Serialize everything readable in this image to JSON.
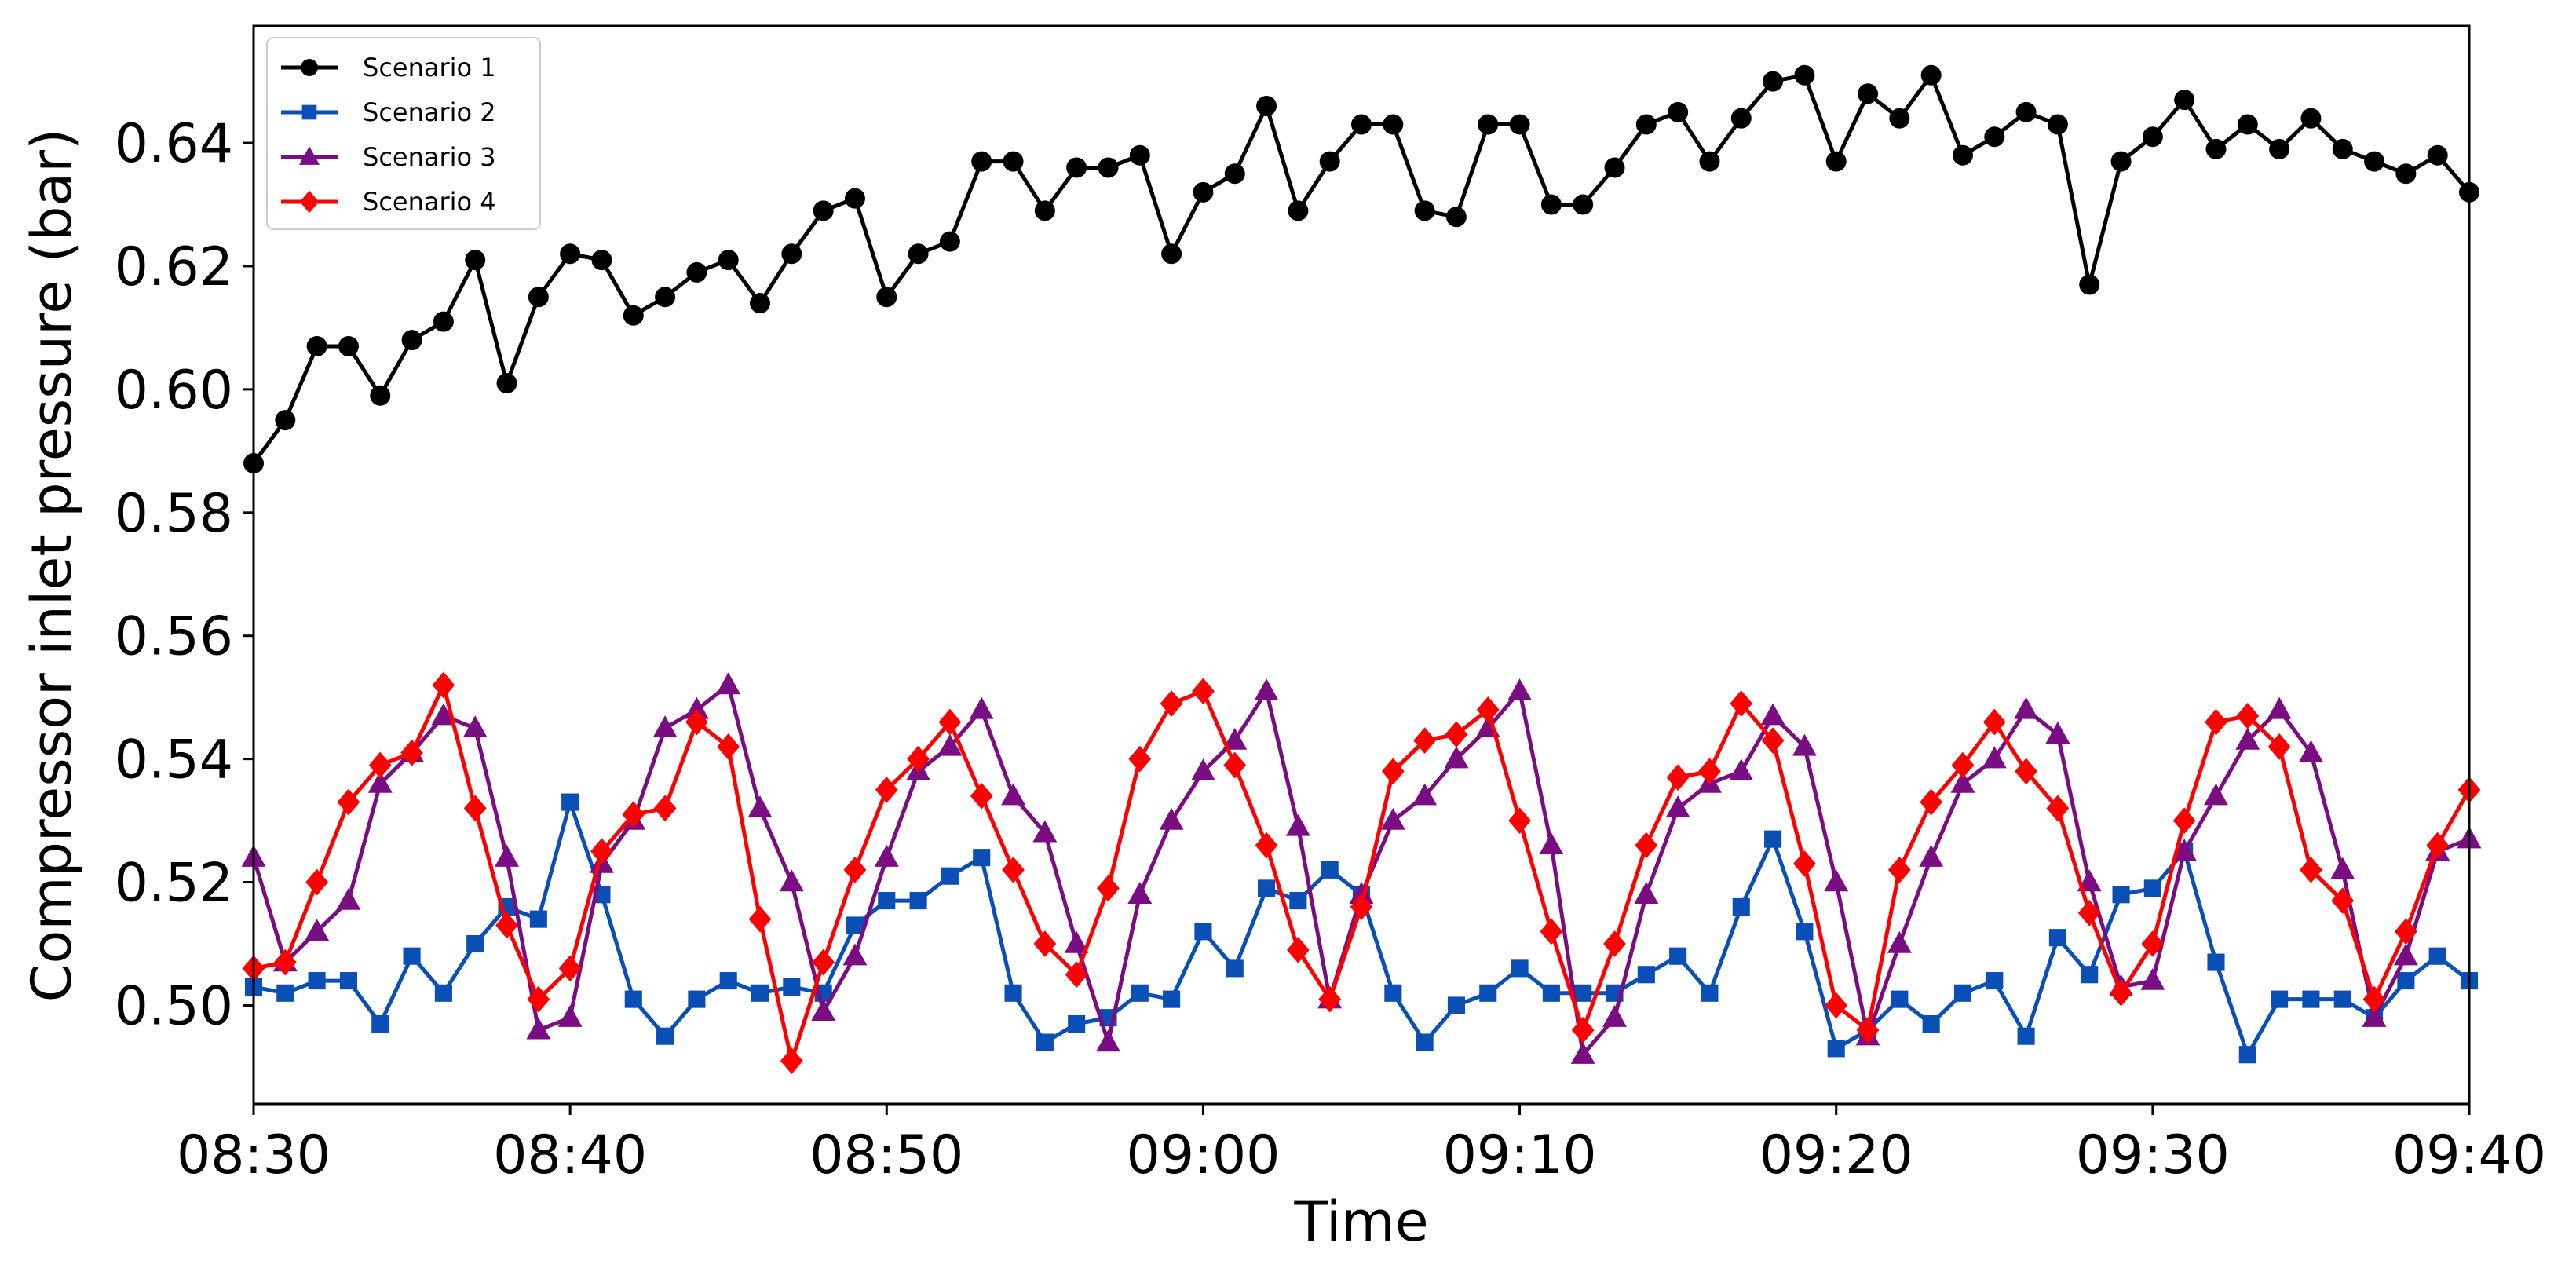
{
  "chart_data": {
    "type": "line",
    "xlabel": "Time",
    "ylabel": "Compressor inlet pressure (bar)",
    "x_ticks": [
      "08:30",
      "08:40",
      "08:50",
      "09:00",
      "09:10",
      "09:20",
      "09:30",
      "09:40"
    ],
    "y_ticks": [
      "0.50",
      "0.52",
      "0.54",
      "0.56",
      "0.58",
      "0.60",
      "0.62",
      "0.64"
    ],
    "xlim": [
      "08:30",
      "09:40"
    ],
    "ylim": [
      0.484,
      0.659
    ],
    "x_interval_minutes": 1,
    "grid": false,
    "legend_position": "top-left",
    "x": [
      "08:30",
      "08:31",
      "08:32",
      "08:33",
      "08:34",
      "08:35",
      "08:36",
      "08:37",
      "08:38",
      "08:39",
      "08:40",
      "08:41",
      "08:42",
      "08:43",
      "08:44",
      "08:45",
      "08:46",
      "08:47",
      "08:48",
      "08:49",
      "08:50",
      "08:51",
      "08:52",
      "08:53",
      "08:54",
      "08:55",
      "08:56",
      "08:57",
      "08:58",
      "08:59",
      "09:00",
      "09:01",
      "09:02",
      "09:03",
      "09:04",
      "09:05",
      "09:06",
      "09:07",
      "09:08",
      "09:09",
      "09:10",
      "09:11",
      "09:12",
      "09:13",
      "09:14",
      "09:15",
      "09:16",
      "09:17",
      "09:18",
      "09:19",
      "09:20",
      "09:21",
      "09:22",
      "09:23",
      "09:24",
      "09:25",
      "09:26",
      "09:27",
      "09:28",
      "09:29",
      "09:30",
      "09:31",
      "09:32",
      "09:33",
      "09:34",
      "09:35",
      "09:36",
      "09:37",
      "09:38",
      "09:39",
      "09:40"
    ],
    "series": [
      {
        "name": "Scenario 1",
        "color": "#000000",
        "marker": "circle",
        "values": [
          0.588,
          0.595,
          0.607,
          0.607,
          0.599,
          0.608,
          0.611,
          0.621,
          0.601,
          0.615,
          0.622,
          0.621,
          0.612,
          0.615,
          0.619,
          0.621,
          0.614,
          0.622,
          0.629,
          0.631,
          0.615,
          0.622,
          0.624,
          0.637,
          0.637,
          0.629,
          0.636,
          0.636,
          0.638,
          0.622,
          0.632,
          0.635,
          0.646,
          0.629,
          0.637,
          0.643,
          0.643,
          0.629,
          0.628,
          0.643,
          0.643,
          0.63,
          0.63,
          0.636,
          0.643,
          0.645,
          0.637,
          0.644,
          0.65,
          0.651,
          0.637,
          0.648,
          0.644,
          0.651,
          0.638,
          0.641,
          0.645,
          0.643,
          0.617,
          0.637,
          0.641,
          0.647,
          0.639,
          0.643,
          0.639,
          0.644,
          0.639,
          0.637,
          0.635,
          0.638,
          0.632
        ]
      },
      {
        "name": "Scenario 2",
        "color": "#0a4fb5",
        "marker": "square",
        "values": [
          0.503,
          0.502,
          0.504,
          0.504,
          0.497,
          0.508,
          0.502,
          0.51,
          0.516,
          0.514,
          0.533,
          0.518,
          0.501,
          0.495,
          0.501,
          0.504,
          0.502,
          0.503,
          0.502,
          0.513,
          0.517,
          0.517,
          0.521,
          0.524,
          0.502,
          0.494,
          0.497,
          0.498,
          0.502,
          0.501,
          0.512,
          0.506,
          0.519,
          0.517,
          0.522,
          0.518,
          0.502,
          0.494,
          0.5,
          0.502,
          0.506,
          0.502,
          0.502,
          0.502,
          0.505,
          0.508,
          0.502,
          0.516,
          0.527,
          0.512,
          0.493,
          0.496,
          0.501,
          0.497,
          0.502,
          0.504,
          0.495,
          0.511,
          0.505,
          0.518,
          0.519,
          0.525,
          0.507,
          0.492,
          0.501,
          0.501,
          0.501,
          0.498,
          0.504,
          0.508,
          0.504
        ]
      },
      {
        "name": "Scenario 3",
        "color": "#7b0d82",
        "marker": "triangle",
        "values": [
          0.524,
          0.507,
          0.512,
          0.517,
          0.536,
          0.541,
          0.547,
          0.545,
          0.524,
          0.496,
          0.498,
          0.523,
          0.53,
          0.545,
          0.548,
          0.552,
          0.532,
          0.52,
          0.499,
          0.508,
          0.524,
          0.538,
          0.542,
          0.548,
          0.534,
          0.528,
          0.51,
          0.494,
          0.518,
          0.53,
          0.538,
          0.543,
          0.551,
          0.529,
          0.501,
          0.518,
          0.53,
          0.534,
          0.54,
          0.545,
          0.551,
          0.526,
          0.492,
          0.498,
          0.518,
          0.532,
          0.536,
          0.538,
          0.547,
          0.542,
          0.52,
          0.495,
          0.51,
          0.524,
          0.536,
          0.54,
          0.548,
          0.544,
          0.52,
          0.503,
          0.504,
          0.525,
          0.534,
          0.543,
          0.548,
          0.541,
          0.522,
          0.498,
          0.508,
          0.525,
          0.527
        ]
      },
      {
        "name": "Scenario 4",
        "color": "#ff0000",
        "marker": "diamond",
        "values": [
          0.506,
          0.507,
          0.52,
          0.533,
          0.539,
          0.541,
          0.552,
          0.532,
          0.513,
          0.501,
          0.506,
          0.525,
          0.531,
          0.532,
          0.546,
          0.542,
          0.514,
          0.491,
          0.507,
          0.522,
          0.535,
          0.54,
          0.546,
          0.534,
          0.522,
          0.51,
          0.505,
          0.519,
          0.54,
          0.549,
          0.551,
          0.539,
          0.526,
          0.509,
          0.501,
          0.516,
          0.538,
          0.543,
          0.544,
          0.548,
          0.53,
          0.512,
          0.496,
          0.51,
          0.526,
          0.537,
          0.538,
          0.549,
          0.543,
          0.523,
          0.5,
          0.496,
          0.522,
          0.533,
          0.539,
          0.546,
          0.538,
          0.532,
          0.515,
          0.502,
          0.51,
          0.53,
          0.546,
          0.547,
          0.542,
          0.522,
          0.517,
          0.501,
          0.512,
          0.526,
          0.535
        ]
      }
    ]
  }
}
